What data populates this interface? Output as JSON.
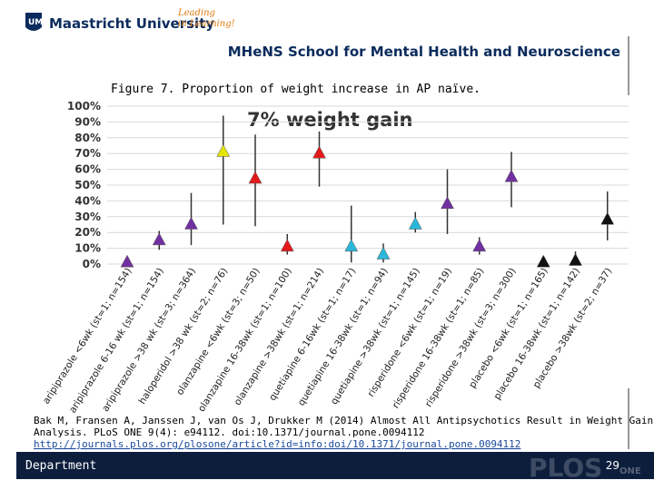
{
  "slide": {
    "university": "Maastricht University",
    "slogan": [
      "Leading",
      "in Learning!"
    ],
    "school": "MHeNS School for Mental Health and Neuroscience",
    "citation": [
      "Bak M, Fransen A, Janssen J, van Os J, Drukker M (2014) Almost All Antipsychotics Result in Weight Gain: A Meta-",
      "Analysis. PLoS ONE 9(4): e94112. doi:10.1371/journal.pone.0094112"
    ],
    "link": "http://journals.plos.org/plosone/article?id=info:doi/10.1371/journal.pone.0094112",
    "footer": "Department",
    "page": "29",
    "watermark": "PLOS",
    "watermark_sub": "ONE"
  },
  "chart_data": {
    "type": "scatter",
    "title": "Figure 7. Proportion of weight increase in AP naïve.",
    "annotation": "7% weight gain",
    "categories": [
      "aripiprazole <6wk (st=1; n=154)",
      "aripiprazole 6-16 wk (st=1; n=154)",
      "aripiprazole >38 wk (st=3; n=364)",
      "haloperidol >38 wk (st=2; n=76)",
      "olanzapine <6wk (st=3; n=50)",
      "olanzapine 16-38wk (st=1; n=100)",
      "olanzapine >38wk (st=1; n=214)",
      "quetiapine 6-16wk (st=1; n=17)",
      "quetiapine 16-38wk (st=1; n=94)",
      "quetiapine >38wk (st=1; n=145)",
      "risperidone <6wk (st=1; n=19)",
      "risperidone 16-38wk (st=1; n=85)",
      "risperidone >38wk (st=3; n=300)",
      "placebo <6wk (st=1; n=165)",
      "placebo 16-38wk (st=1; n=142)",
      "placebo >38wk (st=2; n=37)"
    ],
    "values": [
      1,
      15,
      25,
      71,
      54,
      11,
      70,
      11,
      6,
      25,
      38,
      11,
      55,
      1,
      2,
      28
    ],
    "low": [
      null,
      9,
      12,
      25,
      24,
      6,
      49,
      1,
      1,
      20,
      19,
      6,
      36,
      null,
      0,
      15
    ],
    "high": [
      null,
      21,
      45,
      94,
      82,
      19,
      84,
      37,
      13,
      33,
      60,
      17,
      71,
      null,
      8,
      46
    ],
    "colors": [
      "#7030a0",
      "#7030a0",
      "#7030a0",
      "#e5e500",
      "#e31a1c",
      "#e31a1c",
      "#e31a1c",
      "#2ab7d9",
      "#2ab7d9",
      "#2ab7d9",
      "#7030a0",
      "#7030a0",
      "#7030a0",
      "#111111",
      "#111111",
      "#111111"
    ],
    "ylim": [
      0,
      100
    ],
    "yticks": [
      {
        "value": 0,
        "label": "0%"
      },
      {
        "value": 10,
        "label": "10%"
      },
      {
        "value": 20,
        "label": "20%"
      },
      {
        "value": 30,
        "label": "30%"
      },
      {
        "value": 40,
        "label": "40%"
      },
      {
        "value": 50,
        "label": "50%"
      },
      {
        "value": 60,
        "label": "60%"
      },
      {
        "value": 70,
        "label": "70%"
      },
      {
        "value": 80,
        "label": "80%"
      },
      {
        "value": 90,
        "label": "90%"
      },
      {
        "value": 100,
        "label": "100%"
      }
    ],
    "grid": true
  }
}
